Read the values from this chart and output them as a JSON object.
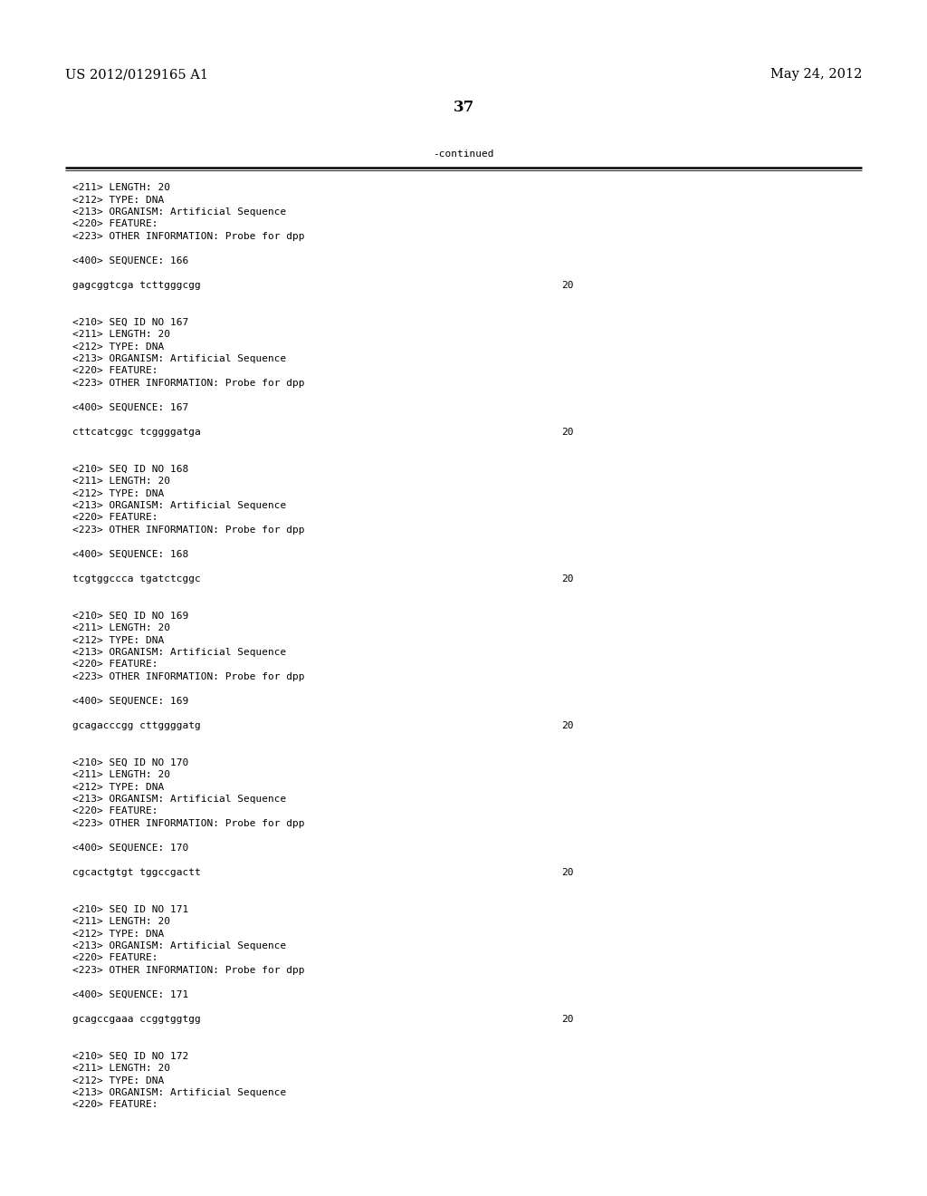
{
  "header_left": "US 2012/0129165 A1",
  "header_right": "May 24, 2012",
  "page_number": "37",
  "continued_label": "-continued",
  "background_color": "#ffffff",
  "text_color": "#000000",
  "font_size_header": 10.5,
  "font_size_body": 8.0,
  "font_size_page": 12,
  "lines": [
    {
      "text": "<211> LENGTH: 20",
      "mono": true
    },
    {
      "text": "<212> TYPE: DNA",
      "mono": true
    },
    {
      "text": "<213> ORGANISM: Artificial Sequence",
      "mono": true
    },
    {
      "text": "<220> FEATURE:",
      "mono": true
    },
    {
      "text": "<223> OTHER INFORMATION: Probe for dpp",
      "mono": true
    },
    {
      "text": "",
      "mono": true
    },
    {
      "text": "<400> SEQUENCE: 166",
      "mono": true
    },
    {
      "text": "",
      "mono": true
    },
    {
      "text": "gagcggtcga tcttgggcgg",
      "mono": true,
      "number": "20"
    },
    {
      "text": "",
      "mono": true
    },
    {
      "text": "",
      "mono": true
    },
    {
      "text": "<210> SEQ ID NO 167",
      "mono": true
    },
    {
      "text": "<211> LENGTH: 20",
      "mono": true
    },
    {
      "text": "<212> TYPE: DNA",
      "mono": true
    },
    {
      "text": "<213> ORGANISM: Artificial Sequence",
      "mono": true
    },
    {
      "text": "<220> FEATURE:",
      "mono": true
    },
    {
      "text": "<223> OTHER INFORMATION: Probe for dpp",
      "mono": true
    },
    {
      "text": "",
      "mono": true
    },
    {
      "text": "<400> SEQUENCE: 167",
      "mono": true
    },
    {
      "text": "",
      "mono": true
    },
    {
      "text": "cttcatcggc tcggggatga",
      "mono": true,
      "number": "20"
    },
    {
      "text": "",
      "mono": true
    },
    {
      "text": "",
      "mono": true
    },
    {
      "text": "<210> SEQ ID NO 168",
      "mono": true
    },
    {
      "text": "<211> LENGTH: 20",
      "mono": true
    },
    {
      "text": "<212> TYPE: DNA",
      "mono": true
    },
    {
      "text": "<213> ORGANISM: Artificial Sequence",
      "mono": true
    },
    {
      "text": "<220> FEATURE:",
      "mono": true
    },
    {
      "text": "<223> OTHER INFORMATION: Probe for dpp",
      "mono": true
    },
    {
      "text": "",
      "mono": true
    },
    {
      "text": "<400> SEQUENCE: 168",
      "mono": true
    },
    {
      "text": "",
      "mono": true
    },
    {
      "text": "tcgtggccca tgatctcggc",
      "mono": true,
      "number": "20"
    },
    {
      "text": "",
      "mono": true
    },
    {
      "text": "",
      "mono": true
    },
    {
      "text": "<210> SEQ ID NO 169",
      "mono": true
    },
    {
      "text": "<211> LENGTH: 20",
      "mono": true
    },
    {
      "text": "<212> TYPE: DNA",
      "mono": true
    },
    {
      "text": "<213> ORGANISM: Artificial Sequence",
      "mono": true
    },
    {
      "text": "<220> FEATURE:",
      "mono": true
    },
    {
      "text": "<223> OTHER INFORMATION: Probe for dpp",
      "mono": true
    },
    {
      "text": "",
      "mono": true
    },
    {
      "text": "<400> SEQUENCE: 169",
      "mono": true
    },
    {
      "text": "",
      "mono": true
    },
    {
      "text": "gcagacccgg cttggggatg",
      "mono": true,
      "number": "20"
    },
    {
      "text": "",
      "mono": true
    },
    {
      "text": "",
      "mono": true
    },
    {
      "text": "<210> SEQ ID NO 170",
      "mono": true
    },
    {
      "text": "<211> LENGTH: 20",
      "mono": true
    },
    {
      "text": "<212> TYPE: DNA",
      "mono": true
    },
    {
      "text": "<213> ORGANISM: Artificial Sequence",
      "mono": true
    },
    {
      "text": "<220> FEATURE:",
      "mono": true
    },
    {
      "text": "<223> OTHER INFORMATION: Probe for dpp",
      "mono": true
    },
    {
      "text": "",
      "mono": true
    },
    {
      "text": "<400> SEQUENCE: 170",
      "mono": true
    },
    {
      "text": "",
      "mono": true
    },
    {
      "text": "cgcactgtgt tggccgactt",
      "mono": true,
      "number": "20"
    },
    {
      "text": "",
      "mono": true
    },
    {
      "text": "",
      "mono": true
    },
    {
      "text": "<210> SEQ ID NO 171",
      "mono": true
    },
    {
      "text": "<211> LENGTH: 20",
      "mono": true
    },
    {
      "text": "<212> TYPE: DNA",
      "mono": true
    },
    {
      "text": "<213> ORGANISM: Artificial Sequence",
      "mono": true
    },
    {
      "text": "<220> FEATURE:",
      "mono": true
    },
    {
      "text": "<223> OTHER INFORMATION: Probe for dpp",
      "mono": true
    },
    {
      "text": "",
      "mono": true
    },
    {
      "text": "<400> SEQUENCE: 171",
      "mono": true
    },
    {
      "text": "",
      "mono": true
    },
    {
      "text": "gcagccgaaa ccggtggtgg",
      "mono": true,
      "number": "20"
    },
    {
      "text": "",
      "mono": true
    },
    {
      "text": "",
      "mono": true
    },
    {
      "text": "<210> SEQ ID NO 172",
      "mono": true
    },
    {
      "text": "<211> LENGTH: 20",
      "mono": true
    },
    {
      "text": "<212> TYPE: DNA",
      "mono": true
    },
    {
      "text": "<213> ORGANISM: Artificial Sequence",
      "mono": true
    },
    {
      "text": "<220> FEATURE:",
      "mono": true
    }
  ]
}
